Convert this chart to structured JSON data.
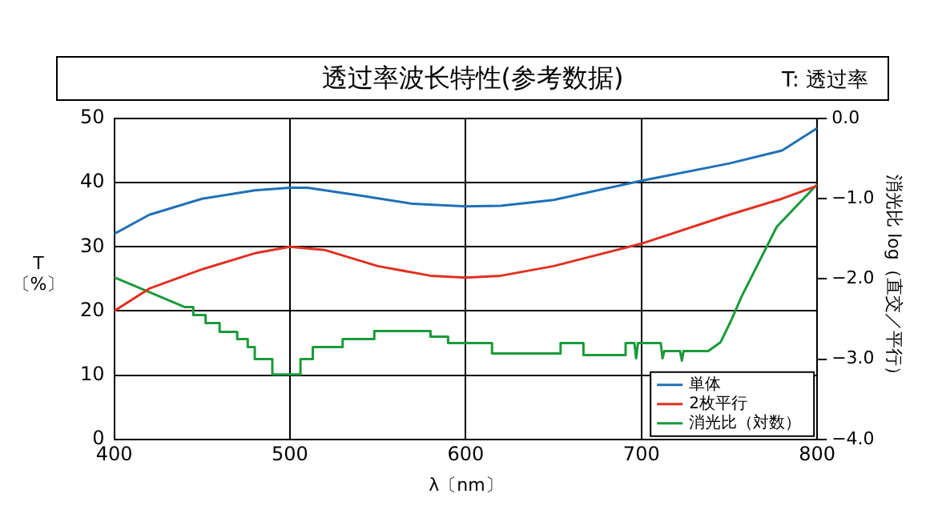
{
  "chart_data": {
    "type": "line",
    "title": "透过率波长特性(参考数据)",
    "annotations": [
      "T: 透过率"
    ],
    "xlabel": "λ〔nm〕",
    "ylabel": "T\n〔%〕",
    "y2label": "消光比 log（直交／平行）",
    "xlim": [
      400,
      800
    ],
    "xticks": [
      400,
      500,
      600,
      700,
      800
    ],
    "ylim": [
      0,
      50
    ],
    "yticks": [
      0,
      10,
      20,
      30,
      40,
      50
    ],
    "y2lim": [
      -4,
      0
    ],
    "y2ticks": [
      {
        "value": -4,
        "label": "−4.0"
      },
      {
        "value": -3,
        "label": "−3.0"
      },
      {
        "value": -2,
        "label": "−2.0"
      },
      {
        "value": -1,
        "label": "−1.0"
      },
      {
        "value": 0,
        "label": "0.0"
      }
    ],
    "grid": true,
    "legend": "bottom right",
    "marker": "none",
    "line_style": "solid",
    "series": [
      {
        "name": "単体",
        "color": "#1f6fb8",
        "x": [
          400,
          420,
          450,
          480,
          500,
          510,
          540,
          570,
          600,
          620,
          650,
          700,
          750,
          780,
          800
        ],
        "values": [
          32,
          35,
          37.5,
          38.8,
          39.2,
          39.2,
          38,
          36.7,
          36.3,
          36.4,
          37.3,
          40.3,
          43,
          45,
          48.5
        ]
      },
      {
        "name": "2枚平行",
        "color": "#e03020",
        "x": [
          400,
          420,
          450,
          480,
          500,
          520,
          550,
          580,
          600,
          620,
          650,
          700,
          750,
          780,
          800
        ],
        "values": [
          20,
          23.5,
          26.5,
          29,
          30,
          29.5,
          27,
          25.5,
          25.2,
          25.5,
          27,
          30.5,
          35,
          37.5,
          39.5
        ]
      },
      {
        "name": "消光比（対数）",
        "color": "#1a9a3a",
        "axis": "y2",
        "x": [
          400,
          440,
          445,
          445,
          452,
          452,
          460,
          460,
          470,
          470,
          476,
          476,
          480,
          480,
          490,
          490,
          506,
          506,
          513,
          513,
          530,
          530,
          548,
          548,
          580,
          580,
          590,
          590,
          615,
          615,
          654,
          654,
          667,
          667,
          691,
          691,
          696,
          697,
          698,
          711,
          712,
          713,
          722,
          723,
          724,
          738,
          745,
          751,
          757,
          777,
          800
        ],
        "values": [
          -1.98,
          -2.35,
          -2.35,
          -2.45,
          -2.45,
          -2.55,
          -2.55,
          -2.66,
          -2.66,
          -2.75,
          -2.75,
          -2.85,
          -2.85,
          -3.0,
          -3.0,
          -3.19,
          -3.19,
          -3.0,
          -3.0,
          -2.85,
          -2.85,
          -2.75,
          -2.75,
          -2.65,
          -2.65,
          -2.72,
          -2.72,
          -2.8,
          -2.8,
          -2.93,
          -2.93,
          -2.8,
          -2.8,
          -2.95,
          -2.95,
          -2.8,
          -2.8,
          -2.99,
          -2.8,
          -2.8,
          -2.99,
          -2.9,
          -2.9,
          -3.02,
          -2.9,
          -2.9,
          -2.79,
          -2.52,
          -2.22,
          -1.35,
          -0.82
        ]
      }
    ]
  }
}
